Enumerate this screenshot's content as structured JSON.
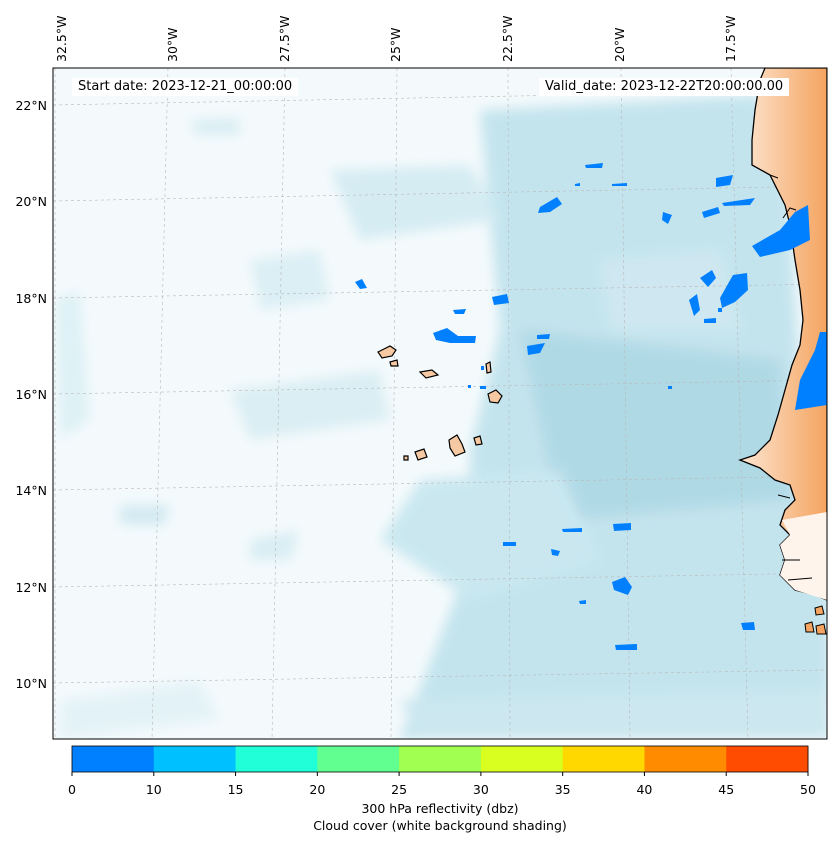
{
  "map": {
    "start_date": "Start date: 2023-12-21_00:00:00",
    "valid_date": "Valid_date: 2023-12-22T20:00:00.00",
    "lon_labels": [
      "32.5°W",
      "30°W",
      "27.5°W",
      "25°W",
      "22.5°W",
      "20°W",
      "17.5°W"
    ],
    "lat_labels": [
      "22°N",
      "20°N",
      "18°N",
      "16°N",
      "14°N",
      "12°N",
      "10°N"
    ],
    "colors": {
      "ocean_cloud": "#add8e6",
      "land": "#f4a460",
      "reflectivity_low": "#0080ff",
      "grid": "#b0b0b0"
    }
  },
  "colorbar": {
    "ticks": [
      "0",
      "10",
      "15",
      "20",
      "25",
      "30",
      "35",
      "40",
      "45",
      "50"
    ],
    "colors": [
      "#0080ff",
      "#00c0ff",
      "#20ffd8",
      "#60ff90",
      "#a0ff50",
      "#d8ff20",
      "#ffd800",
      "#ff8c00",
      "#ff4c00"
    ],
    "label": "300 hPa reflectivity (dbz)",
    "sublabel": "Cloud cover (white background shading)"
  }
}
